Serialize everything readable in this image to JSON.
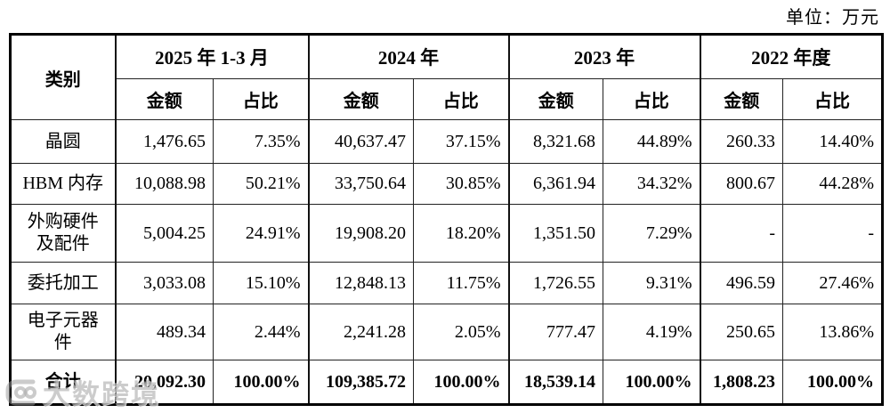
{
  "unit_label": "单位：万元",
  "watermark": {
    "text": "大数跨境",
    "icon": "dashu-logo-icon"
  },
  "colors": {
    "table_border": "#000000",
    "text": "#000000",
    "watermark_gray": "#9e9e9e"
  },
  "table": {
    "category_header": "类别",
    "col_groups": [
      {
        "label": "2025 年 1-3 月",
        "sub": [
          "金额",
          "占比"
        ]
      },
      {
        "label": "2024 年",
        "sub": [
          "金额",
          "占比"
        ]
      },
      {
        "label": "2023 年",
        "sub": [
          "金额",
          "占比"
        ]
      },
      {
        "label": "2022 年度",
        "sub": [
          "金额",
          "占比"
        ]
      }
    ],
    "rows": [
      {
        "label": "晶圆",
        "bold": false,
        "values": [
          "1,476.65",
          "7.35%",
          "40,637.47",
          "37.15%",
          "8,321.68",
          "44.89%",
          "260.33",
          "14.40%"
        ]
      },
      {
        "label": "HBM 内存",
        "bold": false,
        "values": [
          "10,088.98",
          "50.21%",
          "33,750.64",
          "30.85%",
          "6,361.94",
          "34.32%",
          "800.67",
          "44.28%"
        ]
      },
      {
        "label": "外购硬件\n及配件",
        "bold": false,
        "values": [
          "5,004.25",
          "24.91%",
          "19,908.20",
          "18.20%",
          "1,351.50",
          "7.29%",
          "-",
          "-"
        ]
      },
      {
        "label": "委托加工",
        "bold": false,
        "values": [
          "3,033.08",
          "15.10%",
          "12,848.13",
          "11.75%",
          "1,726.55",
          "9.31%",
          "496.59",
          "27.46%"
        ]
      },
      {
        "label": "电子元器\n件",
        "bold": false,
        "values": [
          "489.34",
          "2.44%",
          "2,241.28",
          "2.05%",
          "777.47",
          "4.19%",
          "250.65",
          "13.86%"
        ]
      },
      {
        "label": "合计",
        "bold": true,
        "values": [
          "20,092.30",
          "100.00%",
          "109,385.72",
          "100.00%",
          "18,539.14",
          "100.00%",
          "1,808.23",
          "100.00%"
        ]
      }
    ]
  }
}
